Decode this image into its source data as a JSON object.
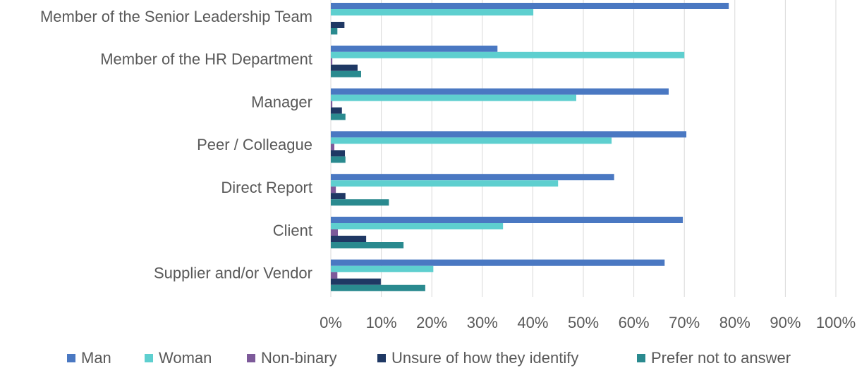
{
  "chart_data": {
    "type": "bar",
    "orientation": "horizontal",
    "categories": [
      "Member of the Senior Leadership Team",
      "Member of the HR Department",
      "Manager",
      "Peer / Colleague",
      "Direct Report",
      "Client",
      "Supplier and/or Vendor"
    ],
    "series": [
      {
        "name": "Man",
        "color": "#4a78c2",
        "values": [
          78.8,
          33,
          66.9,
          70.4,
          56.1,
          69.7,
          66.1
        ]
      },
      {
        "name": "Woman",
        "color": "#5ecfcf",
        "values": [
          40.1,
          70,
          48.6,
          55.6,
          45,
          34.1,
          20.3
        ]
      },
      {
        "name": "Non-binary",
        "color": "#7d5a9a",
        "values": [
          0,
          0.3,
          0.3,
          0.7,
          1,
          1.4,
          1.3
        ]
      },
      {
        "name": "Unsure of how they identify",
        "color": "#1f3864",
        "values": [
          2.7,
          5.3,
          2.2,
          2.8,
          2.9,
          7,
          9.9
        ]
      },
      {
        "name": "Prefer not to answer",
        "color": "#2a8a8f",
        "values": [
          1.3,
          6,
          2.9,
          2.9,
          11.5,
          14.4,
          18.7
        ]
      }
    ],
    "xlim": [
      0,
      100
    ],
    "xticks": [
      {
        "value": 0,
        "label": "0%"
      },
      {
        "value": 10,
        "label": "10%"
      },
      {
        "value": 20,
        "label": "20%"
      },
      {
        "value": 30,
        "label": "30%"
      },
      {
        "value": 40,
        "label": "40%"
      },
      {
        "value": 50,
        "label": "50%"
      },
      {
        "value": 60,
        "label": "60%"
      },
      {
        "value": 70,
        "label": "70%"
      },
      {
        "value": 80,
        "label": "80%"
      },
      {
        "value": 90,
        "label": "90%"
      },
      {
        "value": 100,
        "label": "100%"
      }
    ],
    "grid": true,
    "legend": "bottom"
  }
}
